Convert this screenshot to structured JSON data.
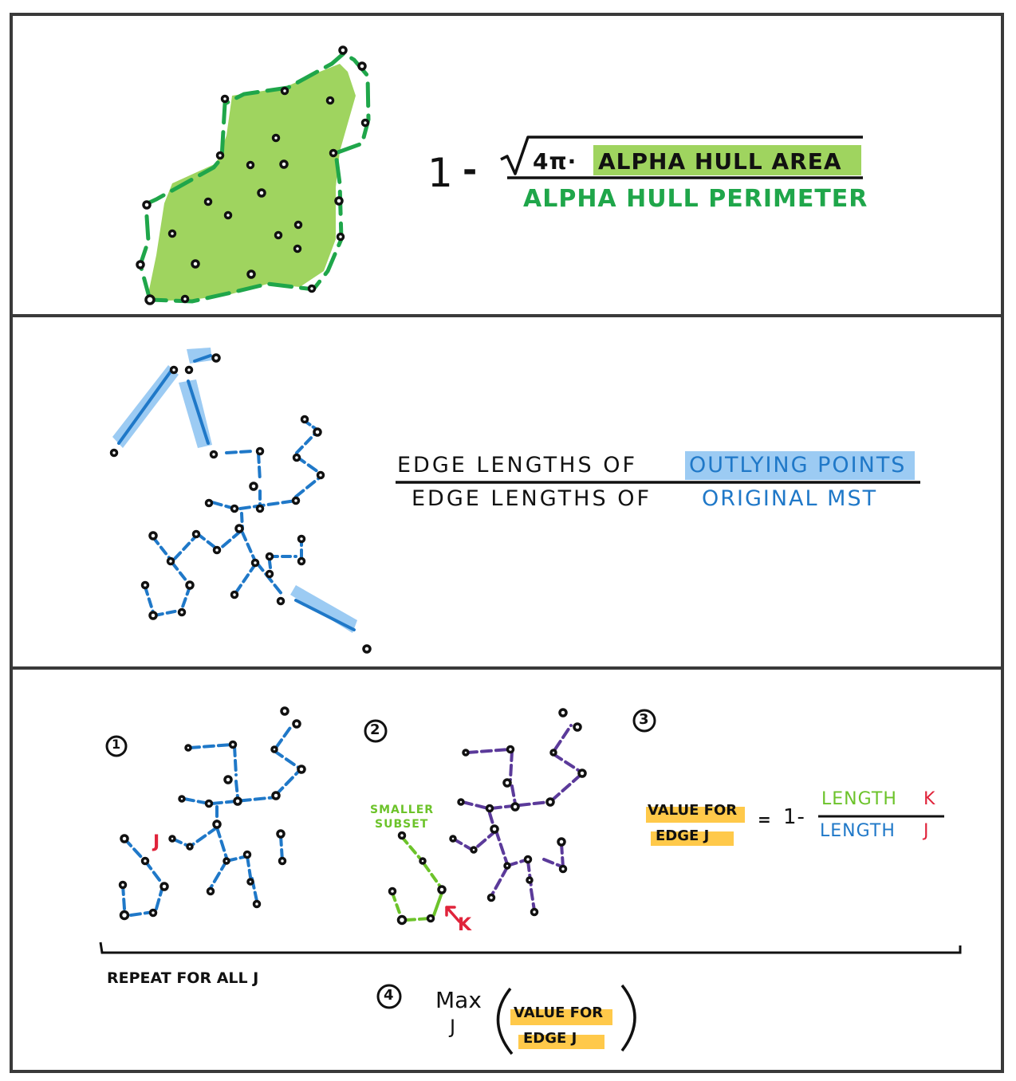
{
  "panel1": {
    "formula": {
      "one": "1",
      "minus": "-",
      "four_pi": "4π·",
      "numerator_highlight": "ALPHA HULL AREA",
      "denominator": "ALPHA HULL PERIMETER"
    }
  },
  "panel2": {
    "numerator_prefix": "EDGE LENGTHS OF",
    "numerator_highlight": "OUTLYING POINTS",
    "denominator_prefix": "EDGE LENGTHS OF",
    "denominator_highlight": "ORIGINAL MST"
  },
  "panel3": {
    "step1": "1",
    "step2": "2",
    "step3": "3",
    "step4": "4",
    "label_j": "J",
    "label_k": "K",
    "smaller_subset_line1": "SMALLER",
    "smaller_subset_line2": "SUBSET",
    "value_for_line1": "VALUE FOR",
    "value_for_line2": "EDGE J",
    "equals": "=",
    "one_minus": "1-",
    "frac_num_word": "LENGTH",
    "frac_num_var": "K",
    "frac_den_word": "LENGTH",
    "frac_den_var": "J",
    "repeat": "REPEAT FOR ALL J",
    "max": "Max",
    "max_sub": "J",
    "max_arg_line1": "VALUE FOR",
    "max_arg_line2": "EDGE J"
  },
  "colors": {
    "green_fill": "#9fd45f",
    "green_line": "#1fa64a",
    "blue_line": "#1f78c8",
    "blue_highlight": "#9ccbf3",
    "purple_line": "#5b3a9a",
    "lime_line": "#6cc32a",
    "red": "#e0243b",
    "yellow_highlight": "#ffc94a",
    "border": "#3a3a3a"
  }
}
